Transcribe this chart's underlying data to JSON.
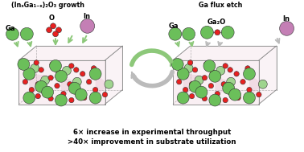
{
  "title_left": "(InₓGa₁₋ₓ)₂O₃ growth",
  "title_right": "Ga flux etch",
  "label_Ga": "Ga",
  "label_O": "O",
  "label_In": "In",
  "label_Ga2O": "Ga₂O",
  "bottom_line1": "6× increase in experimental throughput",
  "bottom_line2": ">40× improvement in substrate utilization",
  "color_Ga_large": "#6BBF5A",
  "color_Ga_small": "#9FD48E",
  "color_O": "#E82020",
  "color_In": "#C47FB5",
  "color_arrow_green": "#8DC87A",
  "color_arrow_gray": "#BBBBBB",
  "color_crystal_edge": "#888888",
  "color_crystal_face": "#E8C0D0",
  "background": "#ffffff",
  "figsize": [
    3.78,
    1.89
  ],
  "dpi": 100
}
